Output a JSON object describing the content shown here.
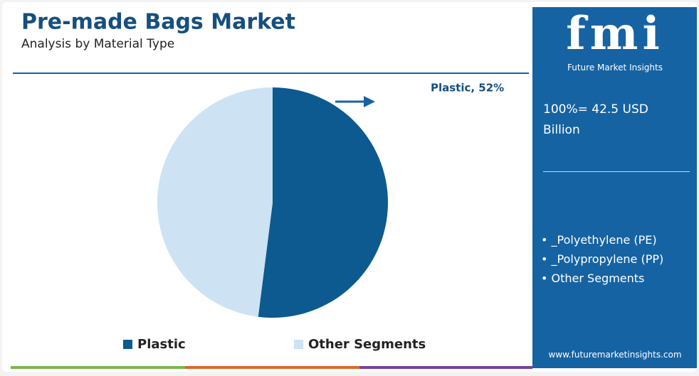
{
  "chart_data": {
    "type": "pie",
    "title": "Pre-made Bags Market",
    "subtitle": "Analysis by Material Type",
    "categories": [
      "Plastic",
      "Other Segments"
    ],
    "values": [
      52,
      48
    ],
    "value_labels": [
      "Plastic, 52%",
      null
    ],
    "colors": [
      "#0c5a8f",
      "#cde2f3"
    ],
    "legend": "bottom"
  },
  "panel": {
    "logo": "fmi",
    "logo_caption": "Future Market Insights",
    "total": "100%= 42.5 USD Billion",
    "segments": [
      "_Polyethylene (PE)",
      "_Polypropylene (PP)",
      "Other Segments"
    ],
    "website": "www.futuremarketinsights.com"
  }
}
